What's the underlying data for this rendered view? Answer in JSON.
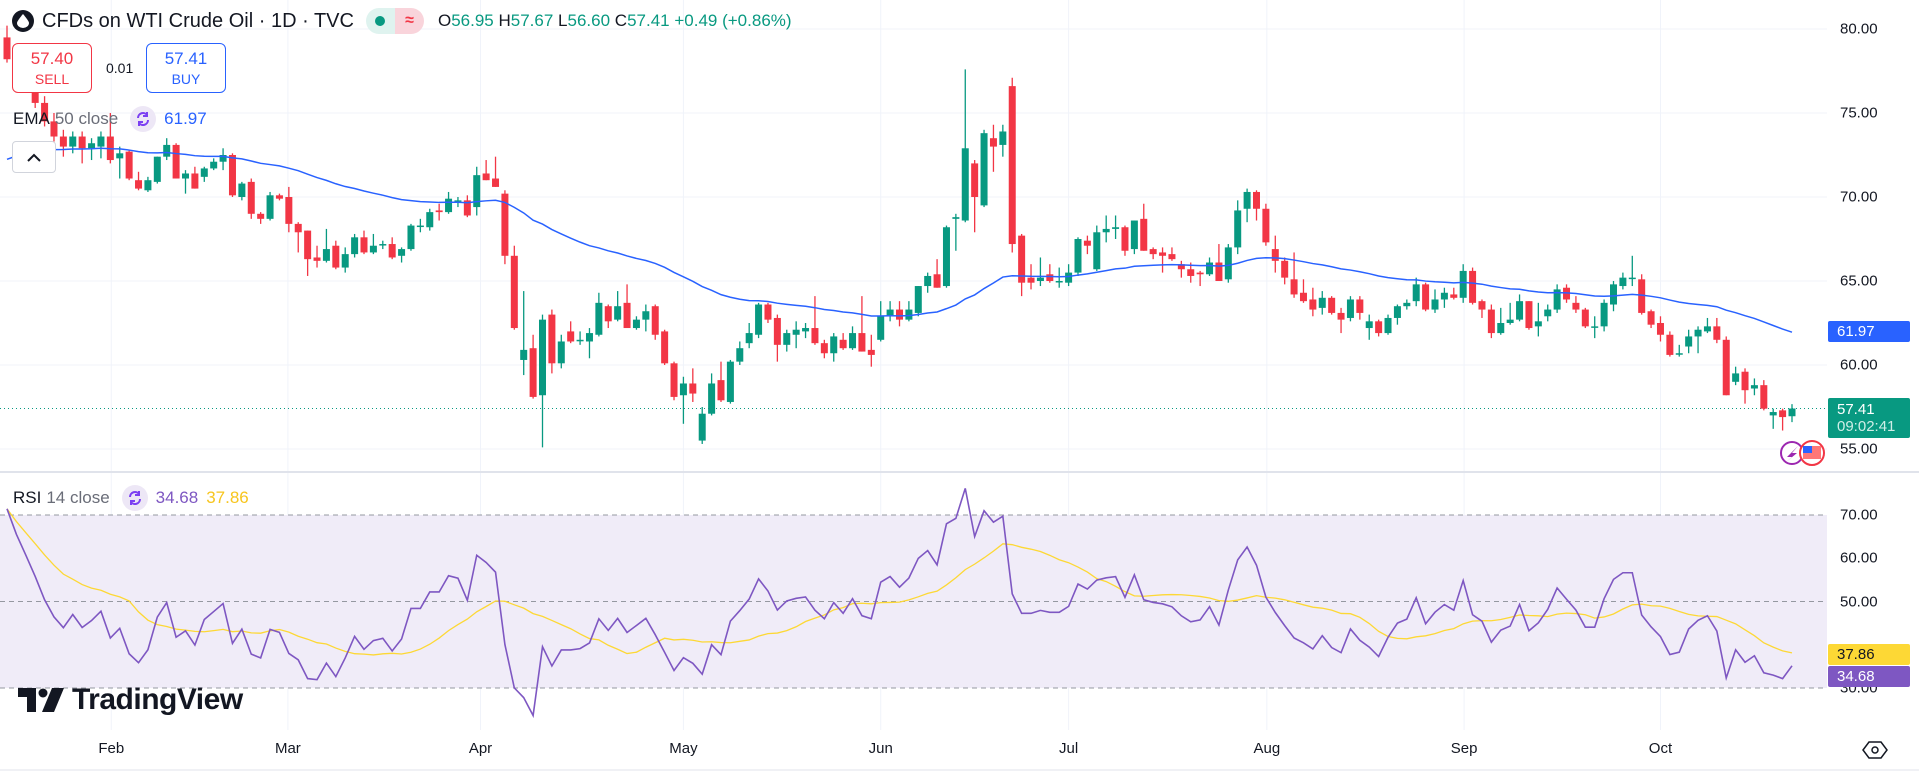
{
  "header": {
    "symbol": "CFDs on WTI Crude Oil",
    "sep": "·",
    "interval": "1D",
    "exchange": "TVC",
    "ohlc": {
      "o_label": "O",
      "o": "56.95",
      "h_label": "H",
      "h": "57.67",
      "l_label": "L",
      "l": "56.60",
      "c_label": "C",
      "c": "57.41",
      "change": "+0.49 (+0.86%)"
    },
    "market_status_icon": "dot-icon",
    "approx_icon": "≈"
  },
  "trade": {
    "sell_price": "57.40",
    "sell_label": "SELL",
    "spread": "0.01",
    "buy_price": "57.41",
    "buy_label": "BUY"
  },
  "ema_legend": {
    "name": "EMA",
    "params": "50 close",
    "value": "61.97"
  },
  "rsi_legend": {
    "name": "RSI",
    "params": "14 close",
    "value": "34.68",
    "ma_value": "37.86"
  },
  "price_axis": [
    "80.00",
    "75.00",
    "70.00",
    "65.00",
    "60.00",
    "55.00"
  ],
  "rsi_axis": [
    "70.00",
    "60.00",
    "50.00",
    "30.00"
  ],
  "tags": {
    "ema": "61.97",
    "last": "57.41",
    "countdown": "09:02:41",
    "rsi_ma": "37.86",
    "rsi": "34.68"
  },
  "logo": "TradingView",
  "colors": {
    "up": "#089981",
    "down": "#f23645",
    "ema": "#2962ff",
    "rsi": "#7e57c2",
    "rsi_ma": "#fdd835",
    "band": "#f0ecf8"
  },
  "chart_data": {
    "type": "candlestick",
    "title": "CFDs on WTI Crude Oil · 1D · TVC",
    "ylim": [
      53.2,
      81.7
    ],
    "price_ticks": [
      80,
      75,
      70,
      65,
      60,
      55
    ],
    "rsi_ticks": [
      70,
      60,
      50,
      30
    ],
    "rsi_ylim": [
      20,
      80
    ],
    "ema_period": 50,
    "ema_seed": 72.0,
    "rsi_period": 14,
    "rsi_ma_period": 14,
    "last_price": 57.41,
    "months": [
      {
        "label": "Feb",
        "bar": 11.1
      },
      {
        "label": "Mar",
        "bar": 29.9
      },
      {
        "label": "Apr",
        "bar": 50.4
      },
      {
        "label": "May",
        "bar": 72
      },
      {
        "label": "Jun",
        "bar": 93
      },
      {
        "label": "Jul",
        "bar": 113
      },
      {
        "label": "Aug",
        "bar": 134.1
      },
      {
        "label": "Sep",
        "bar": 155.1
      },
      {
        "label": "Oct",
        "bar": 176
      }
    ],
    "ohlc": [
      [
        79.5,
        80.2,
        78.0,
        78.2
      ],
      [
        78.2,
        78.6,
        77.0,
        77.3
      ],
      [
        77.3,
        77.8,
        76.2,
        76.5
      ],
      [
        76.5,
        77.0,
        75.3,
        75.6
      ],
      [
        75.6,
        76.0,
        74.2,
        74.5
      ],
      [
        74.5,
        75.0,
        73.3,
        73.6
      ],
      [
        73.6,
        74.0,
        72.4,
        73.0
      ],
      [
        73.0,
        73.9,
        72.6,
        73.6
      ],
      [
        73.6,
        73.9,
        72.0,
        72.9
      ],
      [
        72.9,
        73.5,
        72.2,
        73.2
      ],
      [
        73.0,
        73.9,
        72.3,
        73.6
      ],
      [
        73.6,
        75.0,
        72.0,
        72.2
      ],
      [
        72.3,
        73.0,
        71.1,
        72.6
      ],
      [
        72.7,
        72.8,
        71.0,
        71.1
      ],
      [
        71.0,
        71.5,
        70.4,
        70.5
      ],
      [
        70.4,
        71.2,
        70.3,
        71.0
      ],
      [
        70.9,
        72.4,
        70.8,
        72.4
      ],
      [
        72.4,
        73.5,
        72.2,
        73.1
      ],
      [
        73.1,
        73.2,
        71.1,
        71.1
      ],
      [
        71.1,
        71.6,
        70.2,
        71.4
      ],
      [
        71.4,
        71.8,
        70.5,
        70.5
      ],
      [
        71.2,
        71.8,
        70.9,
        71.7
      ],
      [
        71.7,
        72.3,
        71.6,
        72.1
      ],
      [
        72.1,
        72.9,
        71.6,
        72.5
      ],
      [
        72.5,
        72.6,
        70.0,
        70.1
      ],
      [
        70.0,
        70.9,
        69.8,
        70.8
      ],
      [
        70.9,
        71.1,
        68.7,
        69.0
      ],
      [
        69.0,
        69.1,
        68.4,
        68.7
      ],
      [
        68.7,
        70.3,
        68.6,
        70.1
      ],
      [
        70.1,
        70.2,
        69.8,
        69.9
      ],
      [
        70.0,
        70.6,
        67.9,
        68.4
      ],
      [
        68.4,
        68.5,
        66.7,
        67.9
      ],
      [
        68.0,
        68.0,
        65.3,
        66.3
      ],
      [
        66.4,
        67.1,
        65.8,
        66.2
      ],
      [
        66.2,
        68.1,
        66.1,
        66.9
      ],
      [
        67.1,
        67.4,
        65.7,
        65.8
      ],
      [
        65.8,
        67.0,
        65.5,
        66.6
      ],
      [
        66.6,
        67.8,
        66.4,
        67.6
      ],
      [
        67.6,
        68.0,
        66.6,
        66.7
      ],
      [
        66.7,
        67.8,
        66.6,
        67.1
      ],
      [
        67.2,
        67.4,
        66.9,
        67.2
      ],
      [
        67.2,
        67.6,
        66.3,
        66.4
      ],
      [
        66.5,
        67.0,
        66.1,
        66.9
      ],
      [
        66.9,
        68.4,
        66.8,
        68.3
      ],
      [
        68.3,
        68.7,
        67.9,
        68.3
      ],
      [
        68.2,
        69.3,
        68.0,
        69.1
      ],
      [
        69.2,
        69.6,
        68.6,
        69.1
      ],
      [
        69.1,
        70.3,
        69.0,
        69.9
      ],
      [
        69.8,
        70.0,
        69.4,
        69.8
      ],
      [
        69.8,
        70.1,
        68.8,
        68.9
      ],
      [
        69.4,
        71.8,
        68.9,
        71.3
      ],
      [
        71.4,
        72.2,
        71.0,
        71.0
      ],
      [
        71.1,
        72.4,
        70.6,
        70.6
      ],
      [
        70.2,
        70.4,
        66.0,
        66.5
      ],
      [
        66.5,
        67.1,
        62.1,
        62.2
      ],
      [
        60.3,
        64.4,
        59.4,
        60.9
      ],
      [
        61.0,
        61.8,
        58.0,
        58.1
      ],
      [
        58.2,
        63.0,
        55.1,
        62.7
      ],
      [
        63.0,
        63.3,
        59.5,
        60.1
      ],
      [
        60.1,
        61.8,
        59.8,
        61.4
      ],
      [
        62.0,
        62.6,
        61.3,
        61.4
      ],
      [
        61.5,
        62.0,
        61.2,
        61.5
      ],
      [
        61.4,
        62.2,
        60.4,
        61.9
      ],
      [
        61.8,
        64.3,
        61.7,
        63.7
      ],
      [
        63.5,
        63.6,
        62.2,
        62.6
      ],
      [
        62.7,
        64.4,
        62.6,
        63.5
      ],
      [
        63.7,
        64.8,
        62.4,
        62.2
      ],
      [
        62.2,
        62.9,
        62.1,
        62.7
      ],
      [
        62.7,
        63.6,
        62.0,
        63.2
      ],
      [
        63.5,
        63.6,
        61.5,
        61.8
      ],
      [
        62.0,
        62.1,
        60.0,
        60.1
      ],
      [
        60.1,
        60.2,
        57.9,
        58.1
      ],
      [
        58.2,
        59.3,
        56.5,
        58.9
      ],
      [
        58.9,
        59.8,
        57.8,
        58.3
      ],
      [
        55.5,
        57.5,
        55.3,
        57.1
      ],
      [
        57.1,
        59.5,
        57.0,
        58.9
      ],
      [
        59.1,
        60.2,
        57.8,
        57.9
      ],
      [
        57.8,
        60.3,
        57.7,
        60.2
      ],
      [
        60.2,
        61.4,
        60.0,
        61.0
      ],
      [
        61.3,
        62.5,
        61.0,
        61.9
      ],
      [
        61.8,
        63.7,
        61.6,
        63.6
      ],
      [
        63.6,
        63.7,
        62.5,
        62.7
      ],
      [
        62.8,
        63.0,
        60.2,
        61.2
      ],
      [
        61.2,
        62.1,
        60.8,
        61.9
      ],
      [
        61.8,
        62.6,
        61.0,
        62.1
      ],
      [
        62.0,
        62.5,
        61.6,
        62.2
      ],
      [
        62.2,
        64.1,
        61.2,
        61.3
      ],
      [
        61.3,
        61.5,
        60.4,
        60.7
      ],
      [
        60.7,
        61.9,
        60.2,
        61.7
      ],
      [
        61.5,
        61.9,
        60.9,
        61.0
      ],
      [
        61.0,
        62.3,
        60.9,
        61.9
      ],
      [
        61.9,
        64.1,
        60.8,
        60.8
      ],
      [
        60.9,
        61.8,
        59.9,
        60.6
      ],
      [
        61.5,
        63.8,
        61.4,
        62.9
      ],
      [
        62.9,
        63.8,
        62.6,
        63.3
      ],
      [
        63.3,
        63.8,
        62.3,
        62.7
      ],
      [
        62.7,
        63.8,
        62.6,
        63.3
      ],
      [
        63.1,
        64.7,
        62.9,
        64.7
      ],
      [
        64.7,
        65.5,
        64.3,
        65.3
      ],
      [
        65.4,
        66.3,
        64.6,
        64.6
      ],
      [
        64.7,
        68.3,
        64.6,
        68.2
      ],
      [
        68.7,
        69.0,
        66.8,
        68.8
      ],
      [
        68.6,
        77.6,
        68.5,
        72.9
      ],
      [
        72.0,
        72.2,
        67.9,
        70.0
      ],
      [
        69.5,
        74.0,
        69.4,
        73.8
      ],
      [
        73.5,
        74.3,
        71.5,
        73.0
      ],
      [
        73.1,
        74.3,
        72.4,
        73.9
      ],
      [
        76.6,
        77.1,
        66.7,
        67.2
      ],
      [
        67.7,
        67.8,
        64.1,
        64.9
      ],
      [
        65.2,
        66.0,
        64.5,
        64.9
      ],
      [
        65.0,
        66.4,
        64.7,
        65.2
      ],
      [
        65.4,
        66.0,
        64.9,
        65.0
      ],
      [
        65.0,
        65.8,
        64.6,
        65.0
      ],
      [
        64.9,
        66.0,
        64.7,
        65.5
      ],
      [
        65.5,
        67.6,
        65.3,
        67.5
      ],
      [
        67.4,
        67.7,
        66.6,
        67.1
      ],
      [
        65.7,
        68.3,
        65.6,
        67.9
      ],
      [
        67.9,
        68.9,
        67.3,
        68.1
      ],
      [
        68.1,
        68.9,
        67.5,
        68.2
      ],
      [
        68.2,
        68.3,
        66.5,
        66.8
      ],
      [
        66.9,
        68.6,
        66.6,
        68.6
      ],
      [
        68.7,
        69.6,
        66.8,
        66.8
      ],
      [
        66.9,
        67.0,
        66.3,
        66.6
      ],
      [
        66.7,
        67.0,
        65.5,
        66.5
      ],
      [
        66.6,
        67.0,
        66.2,
        66.3
      ],
      [
        66.0,
        66.2,
        65.2,
        65.7
      ],
      [
        65.7,
        66.1,
        64.9,
        65.3
      ],
      [
        65.5,
        65.6,
        64.7,
        65.4
      ],
      [
        65.4,
        66.4,
        65.3,
        66.1
      ],
      [
        66.1,
        67.2,
        65.0,
        65.0
      ],
      [
        65.1,
        67.2,
        64.9,
        67.0
      ],
      [
        67.0,
        69.8,
        66.6,
        69.2
      ],
      [
        69.3,
        70.5,
        68.5,
        70.3
      ],
      [
        70.3,
        70.4,
        68.6,
        69.3
      ],
      [
        69.3,
        69.6,
        67.1,
        67.3
      ],
      [
        66.9,
        67.7,
        65.5,
        66.2
      ],
      [
        66.2,
        66.4,
        64.8,
        65.2
      ],
      [
        65.1,
        66.7,
        64.0,
        64.2
      ],
      [
        64.3,
        65.1,
        63.7,
        63.8
      ],
      [
        63.9,
        64.6,
        62.9,
        63.3
      ],
      [
        63.4,
        64.4,
        63.0,
        64.0
      ],
      [
        64.0,
        64.1,
        63.0,
        63.1
      ],
      [
        63.1,
        63.4,
        61.9,
        62.7
      ],
      [
        62.8,
        64.1,
        62.6,
        63.9
      ],
      [
        63.9,
        64.1,
        62.7,
        63.1
      ],
      [
        62.2,
        63.0,
        61.5,
        62.6
      ],
      [
        62.6,
        62.7,
        61.7,
        61.9
      ],
      [
        61.9,
        63.0,
        61.8,
        62.8
      ],
      [
        62.8,
        63.6,
        62.4,
        63.5
      ],
      [
        63.5,
        63.9,
        63.3,
        63.7
      ],
      [
        63.8,
        65.2,
        63.5,
        64.8
      ],
      [
        64.8,
        64.9,
        63.2,
        63.3
      ],
      [
        63.3,
        64.5,
        63.1,
        63.9
      ],
      [
        63.9,
        64.6,
        63.4,
        64.3
      ],
      [
        64.2,
        64.6,
        63.9,
        64.0
      ],
      [
        64.0,
        66.0,
        63.7,
        65.6
      ],
      [
        65.6,
        65.8,
        63.6,
        63.7
      ],
      [
        63.8,
        63.9,
        62.8,
        63.3
      ],
      [
        63.3,
        63.6,
        61.6,
        61.9
      ],
      [
        61.9,
        63.4,
        61.8,
        62.5
      ],
      [
        62.5,
        63.7,
        62.4,
        62.7
      ],
      [
        62.7,
        64.2,
        62.6,
        63.8
      ],
      [
        63.8,
        63.8,
        62.1,
        62.2
      ],
      [
        62.3,
        63.7,
        61.7,
        62.6
      ],
      [
        62.9,
        63.6,
        62.6,
        63.3
      ],
      [
        63.3,
        64.8,
        63.1,
        64.5
      ],
      [
        64.6,
        64.8,
        63.7,
        63.9
      ],
      [
        63.7,
        64.1,
        63.1,
        63.3
      ],
      [
        63.3,
        63.4,
        62.2,
        62.3
      ],
      [
        62.3,
        62.9,
        61.6,
        62.3
      ],
      [
        62.3,
        63.9,
        62.0,
        63.7
      ],
      [
        63.6,
        65.0,
        63.2,
        64.8
      ],
      [
        64.7,
        65.5,
        64.5,
        65.2
      ],
      [
        65.2,
        66.5,
        64.7,
        65.2
      ],
      [
        65.1,
        65.4,
        63.0,
        63.1
      ],
      [
        63.2,
        63.3,
        62.2,
        62.4
      ],
      [
        62.5,
        62.9,
        61.4,
        61.8
      ],
      [
        61.8,
        62.0,
        60.5,
        60.6
      ],
      [
        60.7,
        61.2,
        60.5,
        60.7
      ],
      [
        61.1,
        62.1,
        60.7,
        61.7
      ],
      [
        61.7,
        62.3,
        60.7,
        62.1
      ],
      [
        62.0,
        62.8,
        61.9,
        62.3
      ],
      [
        62.3,
        62.8,
        61.3,
        61.5
      ],
      [
        61.5,
        61.7,
        58.2,
        58.2
      ],
      [
        59.0,
        59.9,
        58.8,
        59.5
      ],
      [
        59.6,
        59.8,
        57.7,
        58.5
      ],
      [
        58.6,
        59.2,
        58.2,
        58.8
      ],
      [
        58.8,
        59.1,
        57.3,
        57.4
      ],
      [
        57.0,
        57.4,
        56.2,
        57.2
      ],
      [
        57.3,
        57.4,
        56.1,
        56.9
      ],
      [
        56.95,
        57.67,
        56.6,
        57.41
      ]
    ]
  }
}
